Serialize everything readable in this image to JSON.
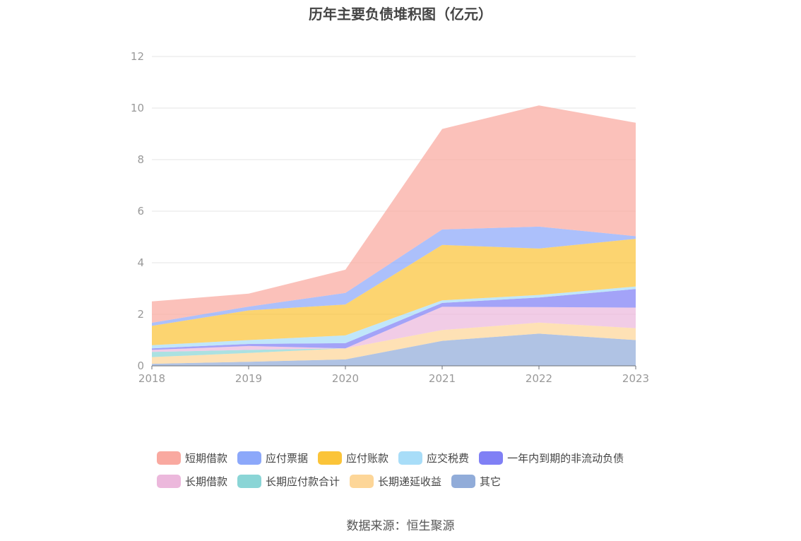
{
  "chart_data": {
    "type": "area",
    "stacked": true,
    "title": "历年主要负债堆积图（亿元）",
    "x": [
      "2018",
      "2019",
      "2020",
      "2021",
      "2022",
      "2023"
    ],
    "ylim": [
      0,
      12
    ],
    "yticks": [
      0,
      2,
      4,
      6,
      8,
      10,
      12
    ],
    "grid": true,
    "legend_position": "bottom",
    "series": [
      {
        "name": "其它",
        "color": "#91ACD9",
        "values": [
          0.08,
          0.16,
          0.25,
          0.97,
          1.25,
          1.0
        ]
      },
      {
        "name": "长期递延收益",
        "color": "#FDD698",
        "values": [
          0.26,
          0.34,
          0.43,
          0.42,
          0.43,
          0.46
        ]
      },
      {
        "name": "长期应付款合计",
        "color": "#8AD5D6",
        "values": [
          0.2,
          0.12,
          0.0,
          0.0,
          0.0,
          0.0
        ]
      },
      {
        "name": "长期借款",
        "color": "#ECB8DC",
        "values": [
          0.08,
          0.15,
          0.0,
          0.9,
          0.6,
          0.8
        ]
      },
      {
        "name": "一年内到期的非流动负债",
        "color": "#8080F5",
        "values": [
          0.06,
          0.08,
          0.2,
          0.15,
          0.37,
          0.72
        ]
      },
      {
        "name": "应交税费",
        "color": "#A8DDF8",
        "values": [
          0.12,
          0.15,
          0.3,
          0.1,
          0.1,
          0.1
        ]
      },
      {
        "name": "应付账款",
        "color": "#FBC439",
        "values": [
          0.75,
          1.15,
          1.2,
          2.15,
          1.8,
          1.85
        ]
      },
      {
        "name": "应付票据",
        "color": "#8CA8FA",
        "values": [
          0.12,
          0.15,
          0.45,
          0.6,
          0.85,
          0.1
        ]
      },
      {
        "name": "短期借款",
        "color": "#F9A9A0",
        "values": [
          0.83,
          0.5,
          0.9,
          3.9,
          4.7,
          4.4
        ]
      }
    ]
  },
  "legend": {
    "row1": [
      "短期借款",
      "应付票据",
      "应付账款",
      "应交税费",
      "一年内到期的非流动负债"
    ],
    "row2": [
      "长期借款",
      "长期应付款合计",
      "长期递延收益",
      "其它"
    ]
  },
  "source": "数据来源：恒生聚源"
}
